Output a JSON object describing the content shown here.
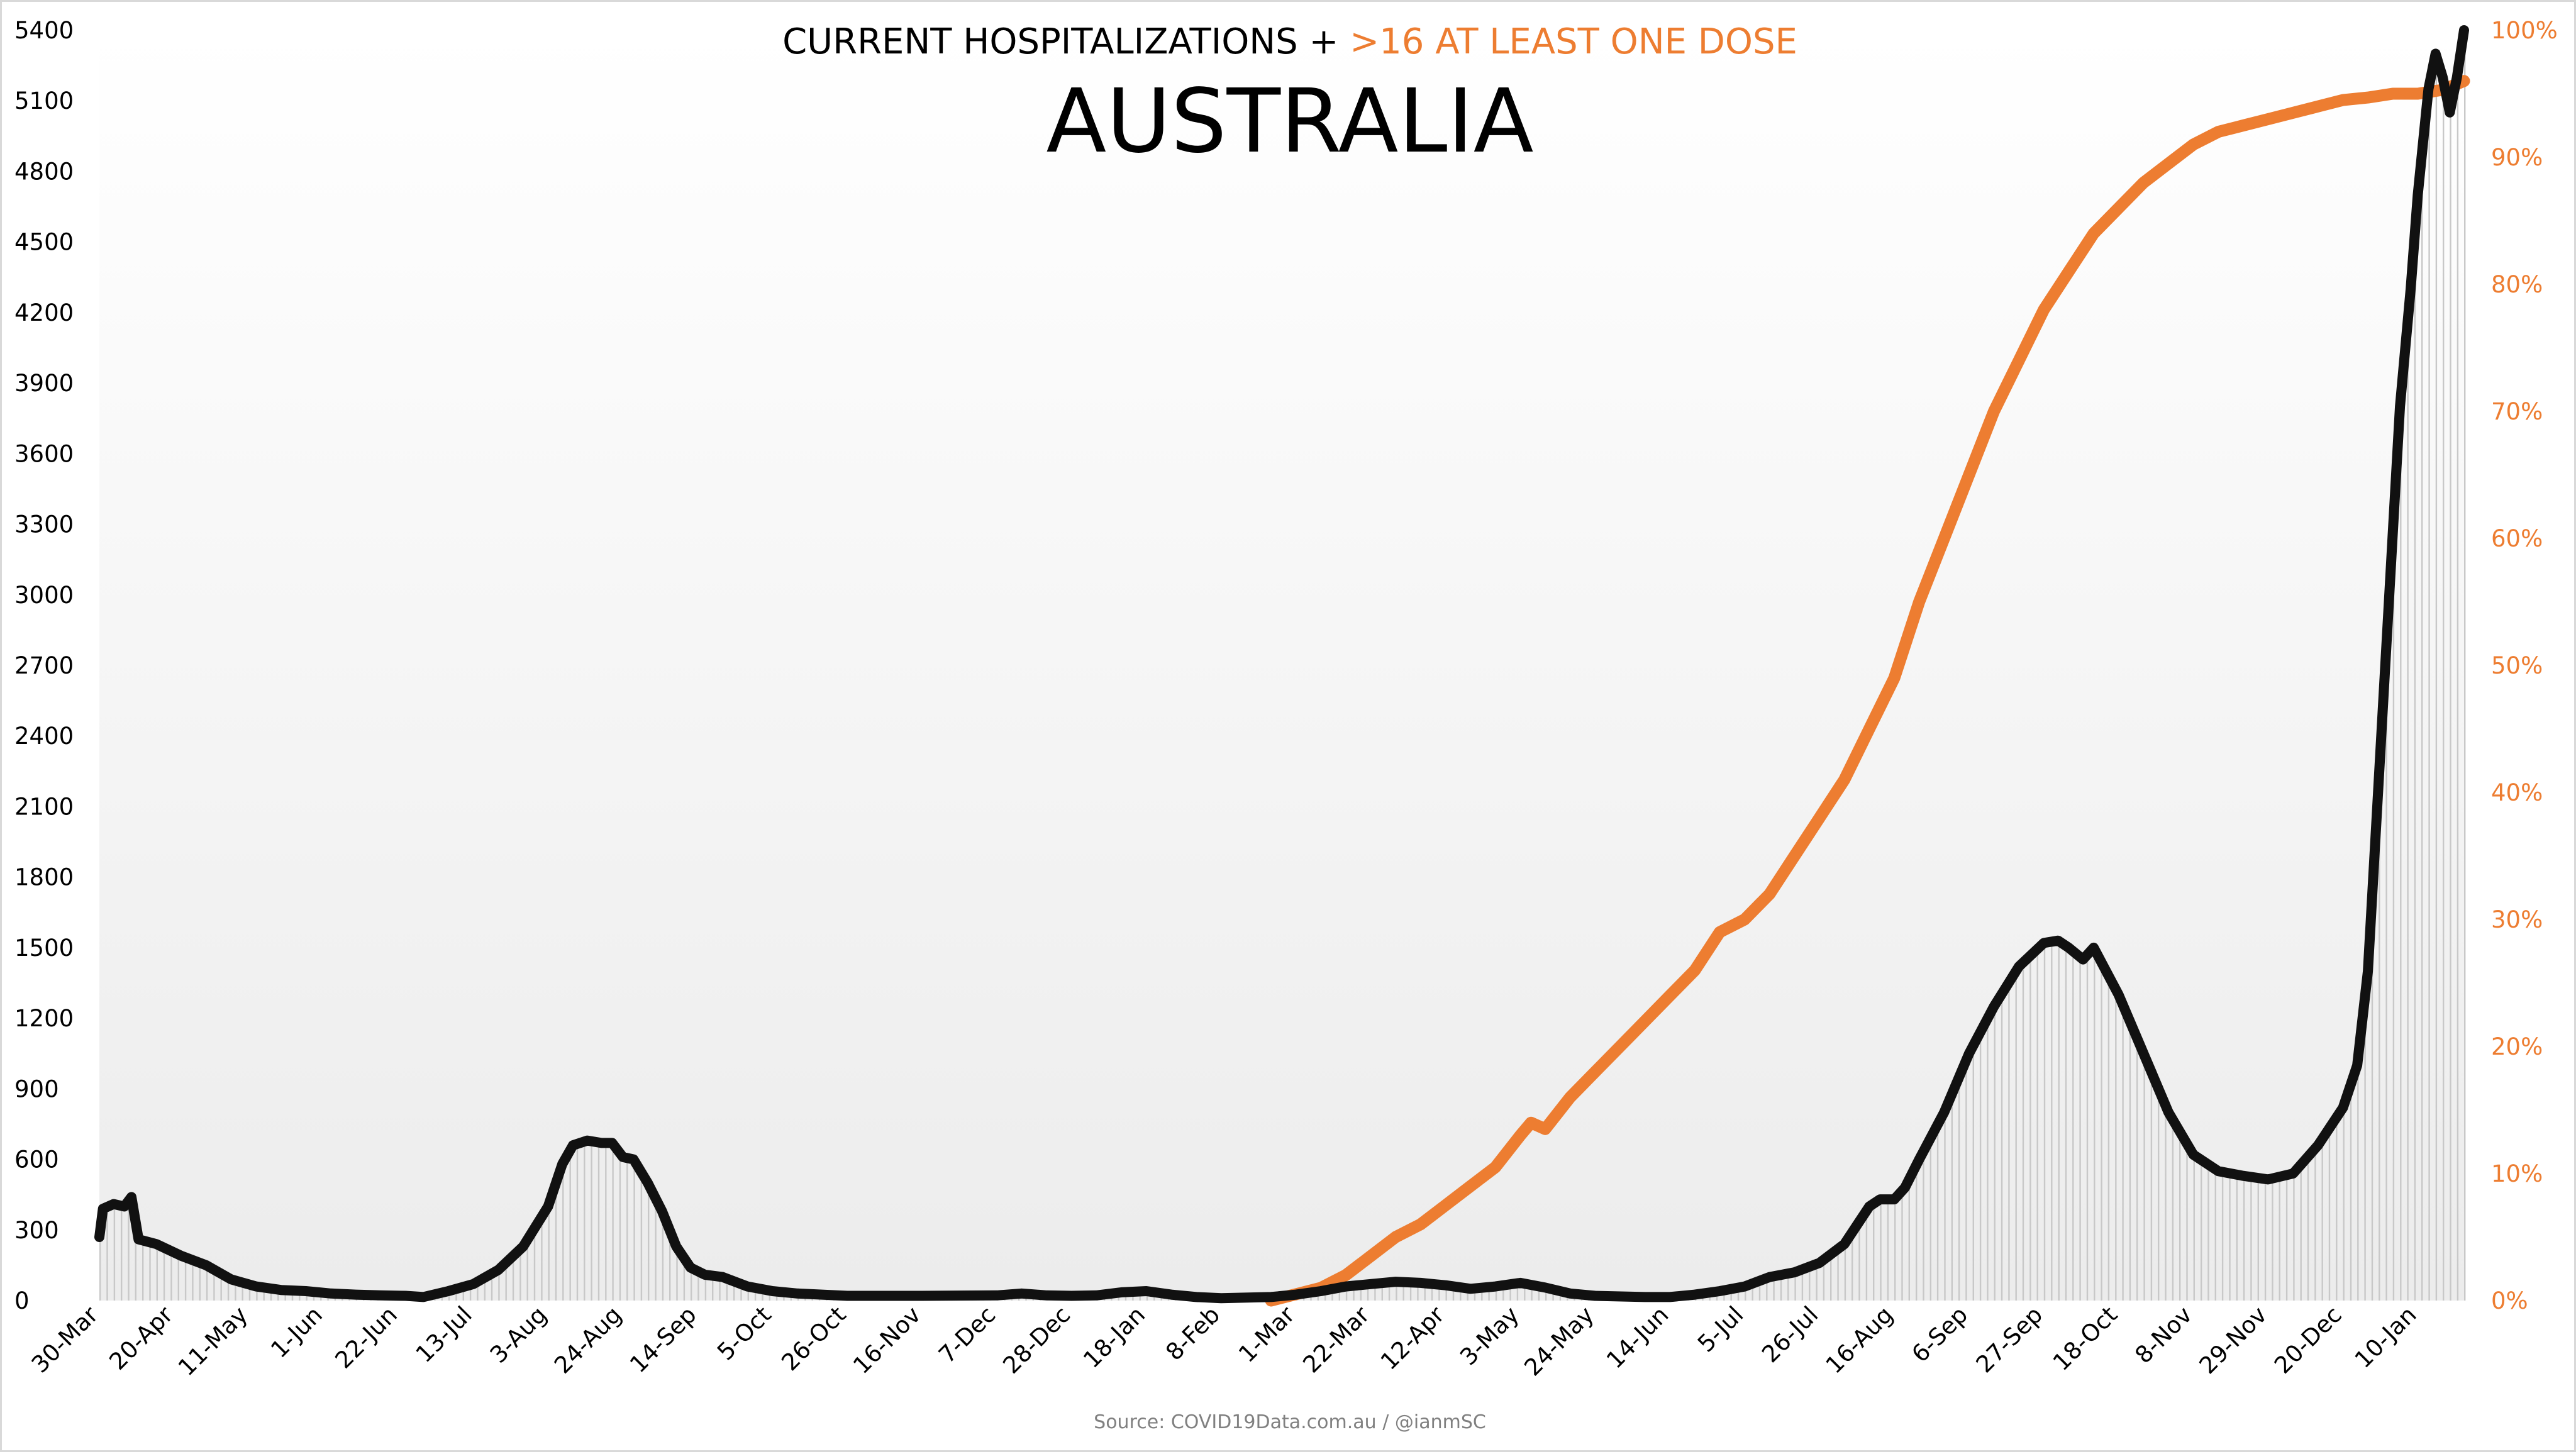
{
  "colors": {
    "hospital_line": "#111111",
    "dose_line": "#ED7D31",
    "bars": "#c8c8c8",
    "background_top": "#ffffff",
    "background_bottom": "#ececec"
  },
  "chart_data": {
    "type": "line",
    "title_part1": "CURRENT HOSPITALIZATIONS + ",
    "title_part2": ">16 AT LEAST ONE DOSE",
    "subtitle": "AUSTRALIA",
    "source": "Source: COVID19Data.com.au / @ianmSC",
    "x_tick_labels": [
      "30-Mar",
      "20-Apr",
      "11-May",
      "1-Jun",
      "22-Jun",
      "13-Jul",
      "3-Aug",
      "24-Aug",
      "14-Sep",
      "5-Oct",
      "26-Oct",
      "16-Nov",
      "7-Dec",
      "28-Dec",
      "18-Jan",
      "8-Feb",
      "1-Mar",
      "22-Mar",
      "12-Apr",
      "3-May",
      "24-May",
      "14-Jun",
      "5-Jul",
      "26-Jul",
      "16-Aug",
      "6-Sep",
      "27-Sep",
      "18-Oct",
      "8-Nov",
      "29-Nov",
      "20-Dec",
      "10-Jan"
    ],
    "x_range": [
      "2020-03-30",
      "2022-01-23"
    ],
    "y_left": {
      "min": 0,
      "max": 5400,
      "ticks": [
        0,
        300,
        600,
        900,
        1200,
        1500,
        1800,
        2100,
        2400,
        2700,
        3000,
        3300,
        3600,
        3900,
        4200,
        4500,
        4800,
        5100,
        5400
      ]
    },
    "y_right": {
      "min": 0,
      "max": 100,
      "ticks": [
        "0%",
        "10%",
        "20%",
        "30%",
        "40%",
        "50%",
        "60%",
        "70%",
        "80%",
        "90%",
        "100%"
      ]
    },
    "grid": false,
    "legend": "none",
    "series": [
      {
        "role": "current hospitalizations (left axis, black line + grey daily bars)",
        "points": [
          [
            "2020-03-30",
            270
          ],
          [
            "2020-03-31",
            390
          ],
          [
            "2020-04-03",
            410
          ],
          [
            "2020-04-06",
            400
          ],
          [
            "2020-04-08",
            440
          ],
          [
            "2020-04-10",
            260
          ],
          [
            "2020-04-15",
            240
          ],
          [
            "2020-04-22",
            190
          ],
          [
            "2020-04-29",
            150
          ],
          [
            "2020-05-06",
            90
          ],
          [
            "2020-05-13",
            60
          ],
          [
            "2020-05-20",
            45
          ],
          [
            "2020-05-27",
            40
          ],
          [
            "2020-06-03",
            30
          ],
          [
            "2020-06-10",
            25
          ],
          [
            "2020-06-17",
            22
          ],
          [
            "2020-06-24",
            20
          ],
          [
            "2020-06-29",
            15
          ],
          [
            "2020-07-06",
            40
          ],
          [
            "2020-07-13",
            70
          ],
          [
            "2020-07-20",
            130
          ],
          [
            "2020-07-27",
            230
          ],
          [
            "2020-08-03",
            400
          ],
          [
            "2020-08-07",
            580
          ],
          [
            "2020-08-10",
            660
          ],
          [
            "2020-08-14",
            680
          ],
          [
            "2020-08-18",
            670
          ],
          [
            "2020-08-21",
            670
          ],
          [
            "2020-08-24",
            610
          ],
          [
            "2020-08-27",
            600
          ],
          [
            "2020-08-31",
            500
          ],
          [
            "2020-09-04",
            380
          ],
          [
            "2020-09-08",
            230
          ],
          [
            "2020-09-12",
            140
          ],
          [
            "2020-09-16",
            110
          ],
          [
            "2020-09-21",
            100
          ],
          [
            "2020-09-28",
            60
          ],
          [
            "2020-10-05",
            40
          ],
          [
            "2020-10-12",
            30
          ],
          [
            "2020-10-26",
            20
          ],
          [
            "2020-11-16",
            20
          ],
          [
            "2020-12-07",
            22
          ],
          [
            "2020-12-14",
            30
          ],
          [
            "2020-12-21",
            22
          ],
          [
            "2020-12-28",
            20
          ],
          [
            "2021-01-04",
            22
          ],
          [
            "2021-01-11",
            35
          ],
          [
            "2021-01-18",
            40
          ],
          [
            "2021-01-25",
            25
          ],
          [
            "2021-02-01",
            15
          ],
          [
            "2021-02-08",
            10
          ],
          [
            "2021-02-22",
            15
          ],
          [
            "2021-03-01",
            25
          ],
          [
            "2021-03-08",
            40
          ],
          [
            "2021-03-15",
            60
          ],
          [
            "2021-03-22",
            70
          ],
          [
            "2021-03-29",
            80
          ],
          [
            "2021-04-05",
            75
          ],
          [
            "2021-04-12",
            65
          ],
          [
            "2021-04-19",
            50
          ],
          [
            "2021-04-26",
            60
          ],
          [
            "2021-05-03",
            75
          ],
          [
            "2021-05-10",
            55
          ],
          [
            "2021-05-17",
            30
          ],
          [
            "2021-05-24",
            20
          ],
          [
            "2021-06-07",
            15
          ],
          [
            "2021-06-14",
            15
          ],
          [
            "2021-06-21",
            25
          ],
          [
            "2021-06-28",
            40
          ],
          [
            "2021-07-05",
            60
          ],
          [
            "2021-07-12",
            100
          ],
          [
            "2021-07-19",
            120
          ],
          [
            "2021-07-26",
            160
          ],
          [
            "2021-08-02",
            240
          ],
          [
            "2021-08-09",
            400
          ],
          [
            "2021-08-12",
            430
          ],
          [
            "2021-08-16",
            430
          ],
          [
            "2021-08-19",
            480
          ],
          [
            "2021-08-23",
            600
          ],
          [
            "2021-08-30",
            800
          ],
          [
            "2021-09-06",
            1050
          ],
          [
            "2021-09-13",
            1250
          ],
          [
            "2021-09-20",
            1420
          ],
          [
            "2021-09-27",
            1520
          ],
          [
            "2021-10-01",
            1530
          ],
          [
            "2021-10-04",
            1500
          ],
          [
            "2021-10-08",
            1450
          ],
          [
            "2021-10-11",
            1500
          ],
          [
            "2021-10-18",
            1300
          ],
          [
            "2021-10-25",
            1050
          ],
          [
            "2021-11-01",
            800
          ],
          [
            "2021-11-08",
            620
          ],
          [
            "2021-11-15",
            550
          ],
          [
            "2021-11-22",
            530
          ],
          [
            "2021-11-29",
            515
          ],
          [
            "2021-12-06",
            540
          ],
          [
            "2021-12-13",
            660
          ],
          [
            "2021-12-20",
            820
          ],
          [
            "2021-12-24",
            1000
          ],
          [
            "2021-12-27",
            1400
          ],
          [
            "2021-12-30",
            2200
          ],
          [
            "2022-01-02",
            3000
          ],
          [
            "2022-01-05",
            3800
          ],
          [
            "2022-01-08",
            4300
          ],
          [
            "2022-01-10",
            4700
          ],
          [
            "2022-01-13",
            5150
          ],
          [
            "2022-01-15",
            5300
          ],
          [
            "2022-01-17",
            5200
          ],
          [
            "2022-01-19",
            5050
          ],
          [
            "2022-01-21",
            5200
          ],
          [
            "2022-01-23",
            5400
          ]
        ]
      },
      {
        "role": ">16 at least one dose (right axis, orange line, percent)",
        "points": [
          [
            "2021-02-22",
            0
          ],
          [
            "2021-03-01",
            0.5
          ],
          [
            "2021-03-08",
            1
          ],
          [
            "2021-03-15",
            2
          ],
          [
            "2021-03-22",
            3.5
          ],
          [
            "2021-03-29",
            5
          ],
          [
            "2021-04-05",
            6
          ],
          [
            "2021-04-12",
            7.5
          ],
          [
            "2021-04-19",
            9
          ],
          [
            "2021-04-26",
            10.5
          ],
          [
            "2021-05-03",
            13
          ],
          [
            "2021-05-06",
            14
          ],
          [
            "2021-05-10",
            13.5
          ],
          [
            "2021-05-17",
            16
          ],
          [
            "2021-05-24",
            18
          ],
          [
            "2021-05-31",
            20
          ],
          [
            "2021-06-07",
            22
          ],
          [
            "2021-06-14",
            24
          ],
          [
            "2021-06-21",
            26
          ],
          [
            "2021-06-28",
            29
          ],
          [
            "2021-07-05",
            30
          ],
          [
            "2021-07-12",
            32
          ],
          [
            "2021-07-19",
            35
          ],
          [
            "2021-07-26",
            38
          ],
          [
            "2021-08-02",
            41
          ],
          [
            "2021-08-09",
            45
          ],
          [
            "2021-08-16",
            49
          ],
          [
            "2021-08-23",
            55
          ],
          [
            "2021-08-30",
            60
          ],
          [
            "2021-09-06",
            65
          ],
          [
            "2021-09-13",
            70
          ],
          [
            "2021-09-20",
            74
          ],
          [
            "2021-09-27",
            78
          ],
          [
            "2021-10-04",
            81
          ],
          [
            "2021-10-11",
            84
          ],
          [
            "2021-10-18",
            86
          ],
          [
            "2021-10-25",
            88
          ],
          [
            "2021-11-01",
            89.5
          ],
          [
            "2021-11-08",
            91
          ],
          [
            "2021-11-15",
            92
          ],
          [
            "2021-11-22",
            92.5
          ],
          [
            "2021-11-29",
            93
          ],
          [
            "2021-12-06",
            93.5
          ],
          [
            "2021-12-13",
            94
          ],
          [
            "2021-12-20",
            94.5
          ],
          [
            "2021-12-27",
            94.7
          ],
          [
            "2022-01-03",
            95
          ],
          [
            "2022-01-10",
            95
          ],
          [
            "2022-01-17",
            95.3
          ],
          [
            "2022-01-23",
            96
          ]
        ]
      }
    ]
  }
}
